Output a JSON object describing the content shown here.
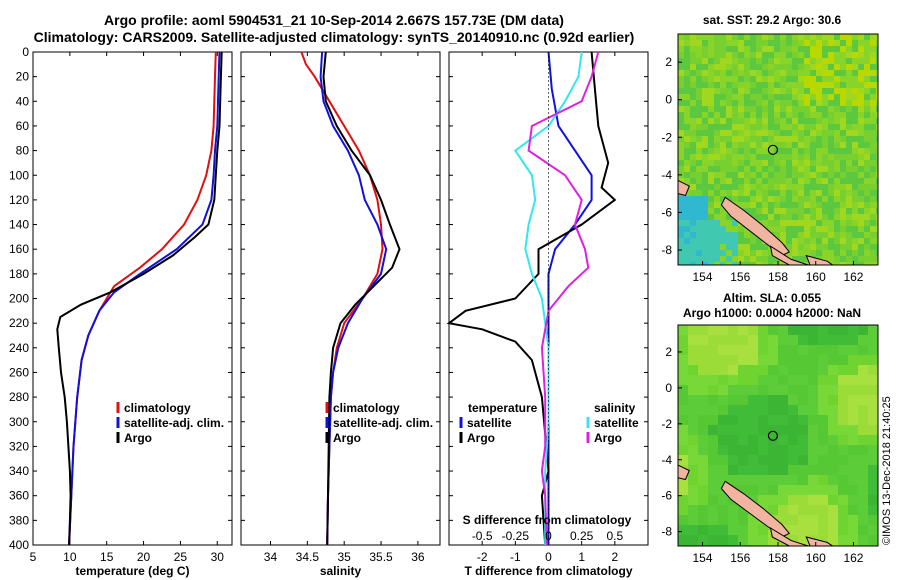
{
  "header": {
    "line1": "Argo profile: aoml 5904531_21 10-Sep-2014 2.667S 157.73E (DM data)",
    "line2": "Climatology: CARS2009. Satellite-adjusted climatology: synTS_20140910.nc (0.92d earlier)"
  },
  "colors": {
    "climatology": "#e01010",
    "satellite": "#1010e0",
    "argo": "#000000",
    "cyan": "#33e6f0",
    "magenta": "#e020e0"
  },
  "chart_data": [
    {
      "id": "temperature",
      "type": "line",
      "xlabel": "temperature (deg C)",
      "xlim": [
        5,
        32
      ],
      "xticks": [
        5,
        10,
        15,
        20,
        25,
        30
      ],
      "ylim": [
        0,
        400
      ],
      "yticks": [
        0,
        20,
        40,
        60,
        80,
        100,
        120,
        140,
        160,
        180,
        200,
        220,
        240,
        260,
        280,
        300,
        320,
        340,
        360,
        380,
        400
      ],
      "legend": [
        "climatology",
        "satellite-adj. clim.",
        "Argo"
      ],
      "series": [
        {
          "name": "climatology",
          "color_key": "climatology",
          "points": [
            [
              29.8,
              0
            ],
            [
              29.7,
              20
            ],
            [
              29.6,
              40
            ],
            [
              29.5,
              60
            ],
            [
              29.2,
              80
            ],
            [
              28.5,
              100
            ],
            [
              27.3,
              120
            ],
            [
              25.5,
              140
            ],
            [
              22.5,
              160
            ],
            [
              19.5,
              175
            ],
            [
              16,
              190
            ],
            [
              14,
              210
            ],
            [
              12.5,
              230
            ],
            [
              11.6,
              250
            ],
            [
              11,
              280
            ],
            [
              10.5,
              320
            ],
            [
              10.2,
              360
            ],
            [
              9.9,
              400
            ]
          ]
        },
        {
          "name": "satellite-adj. clim.",
          "color_key": "satellite",
          "points": [
            [
              30.3,
              0
            ],
            [
              30.2,
              20
            ],
            [
              30.1,
              40
            ],
            [
              30,
              60
            ],
            [
              29.7,
              80
            ],
            [
              29.5,
              100
            ],
            [
              29.2,
              120
            ],
            [
              28,
              140
            ],
            [
              24.5,
              160
            ],
            [
              19.5,
              180
            ],
            [
              16,
              195
            ],
            [
              14,
              210
            ],
            [
              12.5,
              230
            ],
            [
              11.6,
              250
            ],
            [
              11,
              280
            ],
            [
              10.5,
              320
            ],
            [
              10.2,
              360
            ],
            [
              9.9,
              400
            ]
          ]
        },
        {
          "name": "Argo",
          "color_key": "argo",
          "points": [
            [
              30.6,
              0
            ],
            [
              30.5,
              20
            ],
            [
              30.4,
              40
            ],
            [
              30.3,
              60
            ],
            [
              30,
              80
            ],
            [
              29.8,
              100
            ],
            [
              29.6,
              120
            ],
            [
              28.8,
              140
            ],
            [
              27,
              150
            ],
            [
              24,
              165
            ],
            [
              20,
              180
            ],
            [
              15.5,
              195
            ],
            [
              11.5,
              205
            ],
            [
              8.7,
              215
            ],
            [
              8.3,
              225
            ],
            [
              8.5,
              240
            ],
            [
              8.8,
              260
            ],
            [
              9.3,
              280
            ],
            [
              9.6,
              300
            ],
            [
              9.8,
              320
            ],
            [
              10,
              340
            ],
            [
              10.1,
              360
            ],
            [
              10,
              380
            ],
            [
              9.9,
              400
            ]
          ]
        }
      ]
    },
    {
      "id": "salinity",
      "type": "line",
      "xlabel": "salinity",
      "xlim": [
        33.6,
        36.3
      ],
      "xticks": [
        34,
        34.5,
        35,
        35.5,
        36
      ],
      "ylim": [
        0,
        400
      ],
      "legend": [
        "climatology",
        "satellite-adj. clim.",
        "Argo"
      ],
      "series": [
        {
          "name": "climatology",
          "color_key": "climatology",
          "points": [
            [
              34.42,
              0
            ],
            [
              34.48,
              10
            ],
            [
              34.6,
              20
            ],
            [
              34.8,
              40
            ],
            [
              35,
              60
            ],
            [
              35.2,
              80
            ],
            [
              35.35,
              100
            ],
            [
              35.45,
              120
            ],
            [
              35.5,
              140
            ],
            [
              35.52,
              160
            ],
            [
              35.45,
              180
            ],
            [
              35.25,
              200
            ],
            [
              35,
              220
            ],
            [
              34.9,
              240
            ],
            [
              34.85,
              260
            ],
            [
              34.82,
              280
            ],
            [
              34.8,
              320
            ],
            [
              34.78,
              360
            ],
            [
              34.77,
              400
            ]
          ]
        },
        {
          "name": "satellite-adj. clim.",
          "color_key": "satellite",
          "points": [
            [
              34.7,
              0
            ],
            [
              34.68,
              20
            ],
            [
              34.72,
              40
            ],
            [
              34.85,
              60
            ],
            [
              35.05,
              80
            ],
            [
              35.2,
              100
            ],
            [
              35.28,
              120
            ],
            [
              35.45,
              140
            ],
            [
              35.57,
              160
            ],
            [
              35.5,
              180
            ],
            [
              35.25,
              200
            ],
            [
              35.05,
              220
            ],
            [
              34.92,
              240
            ],
            [
              34.85,
              260
            ],
            [
              34.82,
              280
            ],
            [
              34.8,
              320
            ],
            [
              34.78,
              360
            ],
            [
              34.77,
              400
            ]
          ]
        },
        {
          "name": "Argo",
          "color_key": "argo",
          "points": [
            [
              34.75,
              0
            ],
            [
              34.72,
              20
            ],
            [
              34.75,
              40
            ],
            [
              34.9,
              60
            ],
            [
              35.1,
              80
            ],
            [
              35.35,
              100
            ],
            [
              35.5,
              120
            ],
            [
              35.62,
              140
            ],
            [
              35.75,
              160
            ],
            [
              35.65,
              175
            ],
            [
              35.4,
              190
            ],
            [
              35.15,
              205
            ],
            [
              34.95,
              220
            ],
            [
              34.85,
              240
            ],
            [
              34.82,
              260
            ],
            [
              34.8,
              280
            ],
            [
              34.79,
              320
            ],
            [
              34.78,
              360
            ],
            [
              34.77,
              400
            ]
          ]
        }
      ]
    },
    {
      "id": "difference",
      "type": "line",
      "xlabel": "T difference from climatology",
      "top_label": "S difference from climatology",
      "xlim": [
        -3,
        3
      ],
      "xticks": [
        -2,
        -1,
        0,
        1,
        2
      ],
      "top_ticks": [
        "-0.5",
        "-0.25",
        "0",
        "0.25",
        "0.5"
      ],
      "top_tick_positions": [
        -2,
        -1,
        0,
        1,
        2
      ],
      "ylim": [
        0,
        400
      ],
      "legend_temperature": {
        "title": "temperature",
        "items": [
          "satellite",
          "Argo"
        ]
      },
      "legend_salinity": {
        "title": "salinity",
        "items": [
          "satellite",
          "Argo"
        ]
      },
      "series": [
        {
          "name": "temperature satellite",
          "color_key": "satellite",
          "points": [
            [
              0,
              0
            ],
            [
              0.1,
              30
            ],
            [
              0.3,
              60
            ],
            [
              0.8,
              80
            ],
            [
              1.3,
              100
            ],
            [
              1.3,
              120
            ],
            [
              0.8,
              140
            ],
            [
              0.2,
              160
            ],
            [
              0,
              180
            ],
            [
              0,
              260
            ],
            [
              0,
              320
            ],
            [
              0,
              400
            ]
          ]
        },
        {
          "name": "temperature Argo",
          "color_key": "argo",
          "points": [
            [
              1.3,
              0
            ],
            [
              1.4,
              30
            ],
            [
              1.5,
              60
            ],
            [
              1.8,
              90
            ],
            [
              1.6,
              110
            ],
            [
              2,
              120
            ],
            [
              1,
              140
            ],
            [
              -0.3,
              160
            ],
            [
              -0.3,
              180
            ],
            [
              -1,
              200
            ],
            [
              -2.5,
              210
            ],
            [
              -3,
              220
            ],
            [
              -2,
              225
            ],
            [
              -1,
              235
            ],
            [
              -0.5,
              250
            ],
            [
              -0.2,
              280
            ],
            [
              0,
              340
            ],
            [
              -0.2,
              360
            ],
            [
              -0.1,
              400
            ]
          ]
        },
        {
          "name": "salinity satellite",
          "color_key": "cyan",
          "points": [
            [
              1,
              0
            ],
            [
              0.9,
              20
            ],
            [
              0.5,
              40
            ],
            [
              0,
              60
            ],
            [
              -1,
              80
            ],
            [
              -0.5,
              100
            ],
            [
              -0.4,
              120
            ],
            [
              -0.6,
              140
            ],
            [
              -0.7,
              160
            ],
            [
              -0.5,
              180
            ],
            [
              -0.2,
              200
            ],
            [
              0,
              240
            ],
            [
              0,
              300
            ],
            [
              -0.1,
              340
            ],
            [
              -0.1,
              400
            ]
          ]
        },
        {
          "name": "salinity Argo",
          "color_key": "magenta",
          "points": [
            [
              1.5,
              0
            ],
            [
              1.3,
              20
            ],
            [
              1,
              40
            ],
            [
              -0.5,
              60
            ],
            [
              -0.6,
              80
            ],
            [
              0.5,
              100
            ],
            [
              1,
              120
            ],
            [
              0.8,
              140
            ],
            [
              1.1,
              160
            ],
            [
              1.2,
              175
            ],
            [
              0.6,
              190
            ],
            [
              0,
              210
            ],
            [
              -0.2,
              240
            ],
            [
              -0.1,
              280
            ],
            [
              -0.1,
              320
            ],
            [
              -0.2,
              340
            ],
            [
              -0.1,
              360
            ],
            [
              -0.05,
              400
            ]
          ]
        }
      ]
    },
    {
      "id": "sst-map",
      "type": "heatmap",
      "title": "sat. SST: 29.2 Argo: 30.6",
      "xticks": [
        154,
        156,
        158,
        160,
        162
      ],
      "yticks": [
        2,
        0,
        -2,
        -4,
        -6,
        -8
      ],
      "xlim": [
        152.7,
        163.3
      ],
      "ylim": [
        -8.8,
        3.5
      ],
      "marker": {
        "lon": 157.73,
        "lat": -2.667
      }
    },
    {
      "id": "sla-map",
      "type": "heatmap",
      "title": "Altim. SLA: 0.055",
      "subtitle": "Argo h1000: 0.0004 h2000: NaN",
      "xticks": [
        154,
        156,
        158,
        160,
        162
      ],
      "yticks": [
        2,
        0,
        -2,
        -4,
        -6,
        -8
      ],
      "xlim": [
        152.7,
        163.3
      ],
      "ylim": [
        -8.8,
        3.5
      ],
      "marker": {
        "lon": 157.73,
        "lat": -2.667
      }
    }
  ],
  "credit": "©IMOS 13-Dec-2018 21:40:25"
}
